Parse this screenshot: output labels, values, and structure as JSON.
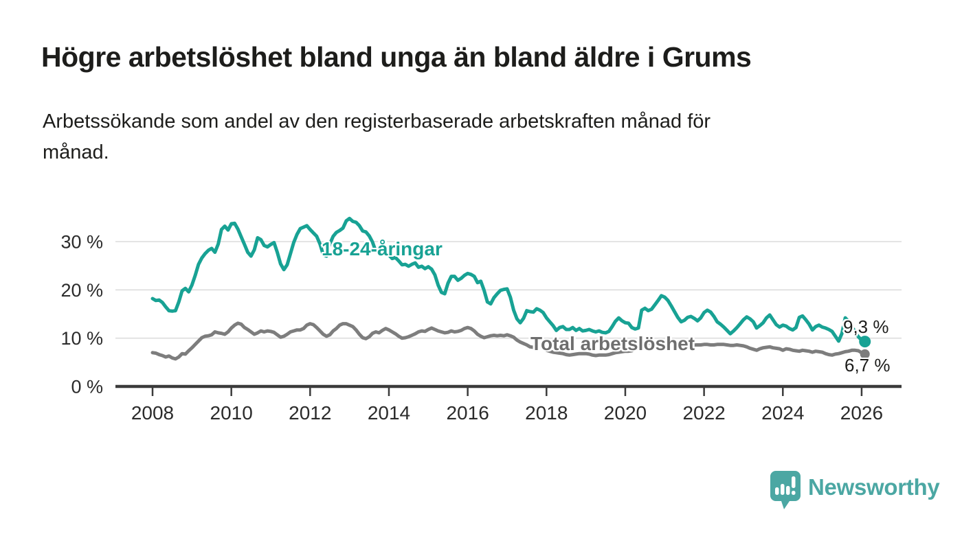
{
  "header": {
    "title": "Högre arbetslöshet bland unga än bland äldre i Grums",
    "subtitle_line1": "Arbetssökande som andel av den registerbaserade arbetskraften månad för",
    "subtitle_line2": "månad."
  },
  "chart_data": {
    "type": "line",
    "unit": "percent of registered labour force",
    "frequency": "monthly",
    "start": "2008-01",
    "end": "2026-02",
    "grid": true,
    "legend_position": "inline-labels",
    "y_axis": {
      "range": [
        0,
        36.5
      ],
      "ticks": [
        {
          "value": 0,
          "label": "0 %"
        },
        {
          "value": 10,
          "label": "10 %"
        },
        {
          "value": 20,
          "label": "20 %"
        },
        {
          "value": 30,
          "label": "30 %"
        }
      ]
    },
    "x_axis": {
      "range": [
        2007.06,
        2027.02
      ],
      "ticks": [
        {
          "value": 2008,
          "label": "2008"
        },
        {
          "value": 2010,
          "label": "2010"
        },
        {
          "value": 2012,
          "label": "2012"
        },
        {
          "value": 2014,
          "label": "2014"
        },
        {
          "value": 2016,
          "label": "2016"
        },
        {
          "value": 2018,
          "label": "2018"
        },
        {
          "value": 2020,
          "label": "2020"
        },
        {
          "value": 2022,
          "label": "2022"
        },
        {
          "value": 2024,
          "label": "2024"
        },
        {
          "value": 2026,
          "label": "2026"
        }
      ]
    },
    "series": [
      {
        "name": "18-24-åringar",
        "color": "#18a294",
        "end_value": 9.3,
        "end_label": "9,3 %",
        "marker_radius": 8.5,
        "values": [
          18.2,
          17.8,
          17.9,
          17.4,
          16.5,
          15.7,
          15.6,
          15.7,
          17.5,
          19.8,
          20.3,
          19.6,
          21.0,
          23.0,
          25.3,
          26.6,
          27.5,
          28.2,
          28.6,
          27.8,
          29.5,
          32.5,
          33.2,
          32.4,
          33.7,
          33.8,
          32.6,
          31.0,
          29.4,
          27.8,
          27.0,
          28.3,
          30.8,
          30.4,
          29.2,
          28.9,
          29.4,
          29.8,
          27.8,
          25.4,
          24.2,
          25.2,
          27.5,
          29.8,
          31.5,
          32.7,
          33.0,
          33.3,
          32.5,
          31.8,
          31.1,
          29.5,
          27.3,
          27.0,
          29.5,
          31.1,
          31.9,
          32.3,
          32.8,
          34.3,
          34.8,
          34.2,
          34.0,
          33.3,
          32.2,
          32.0,
          31.2,
          29.9,
          28.0,
          28.4,
          28.6,
          28.1,
          27.2,
          26.5,
          26.7,
          26.0,
          25.2,
          25.3,
          24.9,
          25.3,
          25.6,
          24.7,
          24.9,
          24.4,
          24.8,
          24.3,
          23.1,
          21.0,
          19.5,
          19.2,
          21.4,
          22.8,
          22.8,
          22.0,
          22.4,
          23.0,
          23.4,
          23.2,
          22.8,
          21.5,
          21.8,
          19.9,
          17.5,
          17.1,
          18.4,
          19.2,
          19.9,
          20.1,
          20.2,
          18.5,
          15.8,
          14.0,
          13.2,
          14.1,
          15.7,
          15.5,
          15.4,
          16.1,
          15.8,
          15.3,
          14.2,
          13.4,
          12.6,
          11.6,
          12.2,
          12.4,
          11.8,
          11.8,
          12.2,
          11.6,
          12.0,
          11.5,
          11.6,
          11.8,
          11.5,
          11.3,
          11.5,
          11.2,
          11.1,
          11.4,
          12.4,
          13.5,
          14.2,
          13.6,
          13.2,
          13.1,
          12.2,
          11.9,
          12.1,
          15.8,
          16.2,
          15.7,
          16.0,
          16.9,
          17.8,
          18.8,
          18.5,
          17.8,
          16.7,
          15.5,
          14.3,
          13.4,
          13.7,
          14.3,
          14.5,
          14.1,
          13.6,
          14.2,
          15.3,
          15.8,
          15.4,
          14.5,
          13.4,
          12.9,
          12.3,
          11.6,
          10.9,
          11.5,
          12.2,
          13.0,
          13.8,
          14.4,
          14.0,
          13.4,
          12.1,
          12.6,
          13.2,
          14.2,
          14.8,
          13.8,
          12.8,
          12.3,
          12.7,
          12.5,
          12.0,
          11.7,
          12.2,
          14.3,
          14.6,
          13.8,
          12.9,
          11.7,
          12.4,
          12.7,
          12.3,
          12.1,
          11.8,
          11.4,
          10.4,
          9.4,
          11.0,
          14.2,
          13.5,
          12.4,
          11.3,
          10.3,
          9.6,
          9.3
        ]
      },
      {
        "name": "Total arbetslöshet",
        "color": "#7d7d7d",
        "end_value": 6.7,
        "end_label": "6,7 %",
        "marker_radius": 7,
        "values": [
          7.0,
          6.9,
          6.6,
          6.4,
          6.1,
          6.3,
          5.9,
          5.7,
          6.1,
          6.8,
          6.7,
          7.4,
          8.0,
          8.7,
          9.4,
          10.1,
          10.4,
          10.5,
          10.7,
          11.3,
          11.1,
          11.0,
          10.8,
          11.3,
          12.1,
          12.7,
          13.1,
          12.9,
          12.2,
          11.8,
          11.3,
          10.8,
          11.1,
          11.5,
          11.3,
          11.5,
          11.4,
          11.2,
          10.7,
          10.2,
          10.4,
          10.8,
          11.3,
          11.5,
          11.7,
          11.7,
          12.0,
          12.7,
          13.0,
          12.8,
          12.2,
          11.5,
          10.8,
          10.4,
          10.7,
          11.5,
          12.0,
          12.7,
          13.0,
          13.0,
          12.7,
          12.4,
          11.7,
          10.8,
          10.1,
          9.9,
          10.3,
          11.0,
          11.3,
          11.1,
          11.6,
          12.0,
          11.7,
          11.3,
          10.9,
          10.4,
          10.0,
          10.1,
          10.3,
          10.6,
          10.9,
          11.3,
          11.5,
          11.4,
          11.8,
          12.1,
          11.8,
          11.5,
          11.3,
          11.1,
          11.2,
          11.5,
          11.3,
          11.4,
          11.6,
          12.0,
          12.2,
          12.0,
          11.5,
          10.8,
          10.4,
          10.1,
          10.3,
          10.5,
          10.6,
          10.5,
          10.6,
          10.5,
          10.7,
          10.5,
          10.2,
          9.6,
          9.2,
          8.9,
          8.6,
          8.2,
          8.1,
          8.2,
          8.6,
          8.0,
          7.5,
          7.3,
          7.1,
          7.0,
          6.9,
          6.8,
          6.6,
          6.5,
          6.6,
          6.7,
          6.8,
          6.8,
          6.8,
          6.7,
          6.5,
          6.4,
          6.5,
          6.5,
          6.5,
          6.6,
          6.8,
          7.0,
          7.1,
          7.2,
          7.3,
          7.3,
          7.4,
          7.8,
          8.3,
          8.6,
          8.8,
          8.9,
          9.0,
          9.1,
          9.2,
          9.2,
          9.3,
          9.2,
          9.1,
          9.0,
          8.9,
          8.8,
          8.8,
          8.7,
          8.7,
          8.6,
          8.6,
          8.6,
          8.7,
          8.7,
          8.6,
          8.6,
          8.7,
          8.7,
          8.7,
          8.6,
          8.5,
          8.5,
          8.6,
          8.5,
          8.4,
          8.2,
          7.9,
          7.7,
          7.5,
          7.8,
          8.0,
          8.1,
          8.2,
          8.0,
          7.9,
          7.8,
          7.5,
          7.8,
          7.7,
          7.5,
          7.4,
          7.3,
          7.5,
          7.4,
          7.3,
          7.1,
          7.3,
          7.2,
          7.1,
          6.8,
          6.6,
          6.5,
          6.7,
          6.8,
          7.0,
          7.2,
          7.3,
          7.5,
          7.5,
          7.4,
          7.0,
          6.7
        ]
      }
    ],
    "colors": {
      "gridline": "#dcdcdc",
      "axis": "#3b3b3b",
      "tick_text": "#2b2b2b"
    }
  },
  "footer": {
    "brand": "Newsworthy",
    "brand_color": "#4ba7a3",
    "logo_icon": "bar-chart-speech-bubble-icon"
  }
}
